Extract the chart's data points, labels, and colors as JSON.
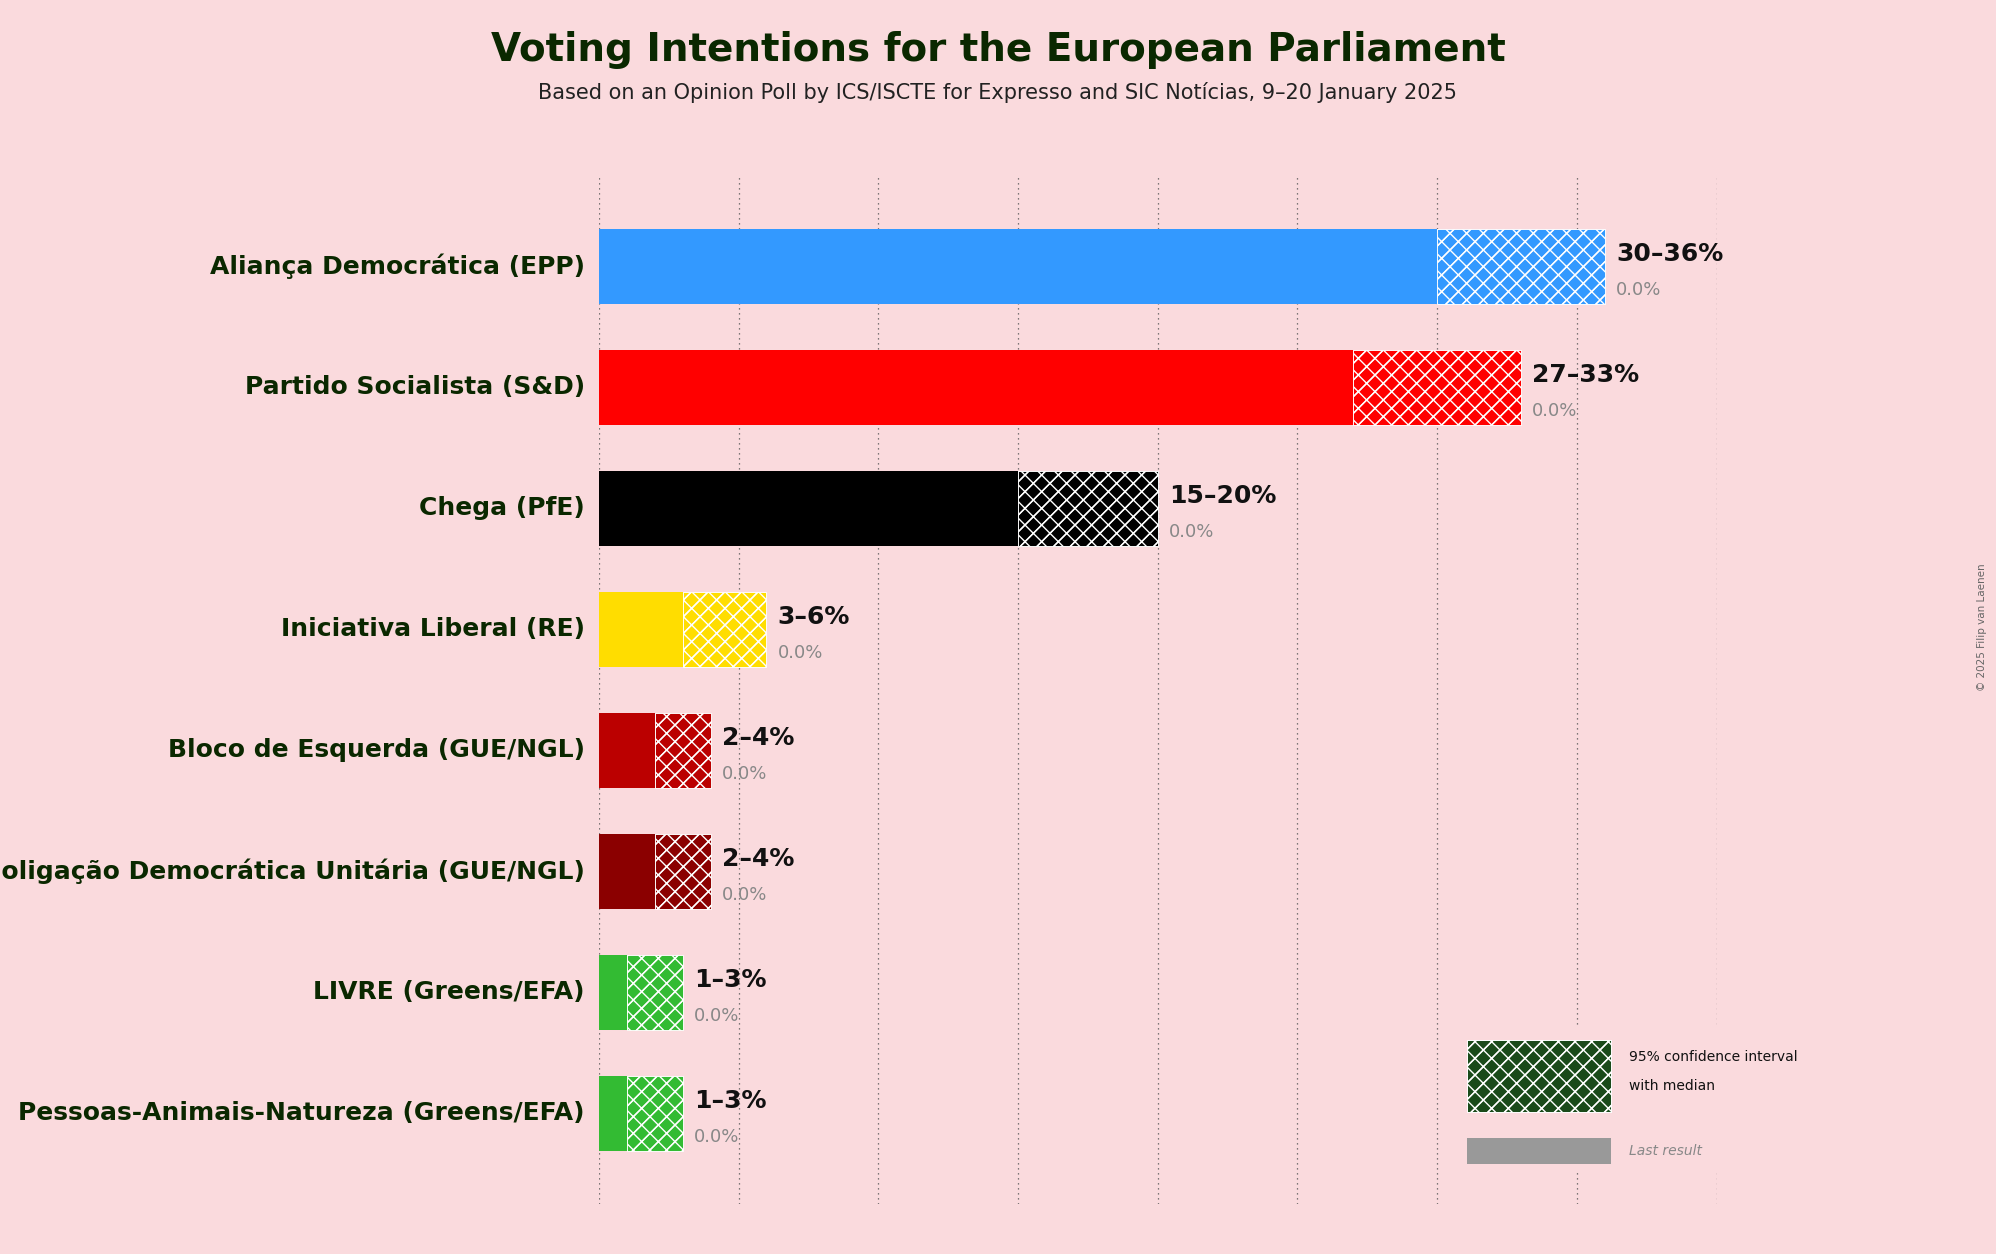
{
  "title": "Voting Intentions for the European Parliament",
  "subtitle": "Based on an Opinion Poll by ICS/ISCTE for Expresso and SIC Notícias, 9–20 January 2025",
  "background_color": "#FADADD",
  "copyright": "© 2025 Filip van Laenen",
  "parties": [
    {
      "label": "Aliança Democrática (EPP)",
      "low": 30,
      "high": 36,
      "last": 0.0,
      "color": "#3399FF",
      "range_label": "30–36%",
      "last_label": "0.0%"
    },
    {
      "label": "Partido Socialista (S&D)",
      "low": 27,
      "high": 33,
      "last": 0.0,
      "color": "#FF0000",
      "range_label": "27–33%",
      "last_label": "0.0%"
    },
    {
      "label": "Chega (PfE)",
      "low": 15,
      "high": 20,
      "last": 0.0,
      "color": "#000000",
      "range_label": "15–20%",
      "last_label": "0.0%"
    },
    {
      "label": "Iniciativa Liberal (RE)",
      "low": 3,
      "high": 6,
      "last": 0.0,
      "color": "#FFDD00",
      "range_label": "3–6%",
      "last_label": "0.0%"
    },
    {
      "label": "Bloco de Esquerda (GUE/NGL)",
      "low": 2,
      "high": 4,
      "last": 0.0,
      "color": "#BB0000",
      "range_label": "2–4%",
      "last_label": "0.0%"
    },
    {
      "label": "Coligação Democrática Unitária (GUE/NGL)",
      "low": 2,
      "high": 4,
      "last": 0.0,
      "color": "#8B0000",
      "range_label": "2–4%",
      "last_label": "0.0%"
    },
    {
      "label": "LIVRE (Greens/EFA)",
      "low": 1,
      "high": 3,
      "last": 0.0,
      "color": "#33BB33",
      "range_label": "1–3%",
      "last_label": "0.0%"
    },
    {
      "label": "Pessoas-Animais-Natureza (Greens/EFA)",
      "low": 1,
      "high": 3,
      "last": 0.0,
      "color": "#33BB33",
      "range_label": "1–3%",
      "last_label": "0.0%"
    }
  ],
  "xlim": [
    0,
    40
  ],
  "grid_ticks": [
    0,
    5,
    10,
    15,
    20,
    25,
    30,
    35,
    40
  ],
  "title_fontsize": 28,
  "subtitle_fontsize": 15,
  "label_fontsize": 18,
  "range_fontsize": 18,
  "last_fontsize": 13,
  "bar_height": 0.62,
  "legend_dark_green": "#1a4a1a"
}
